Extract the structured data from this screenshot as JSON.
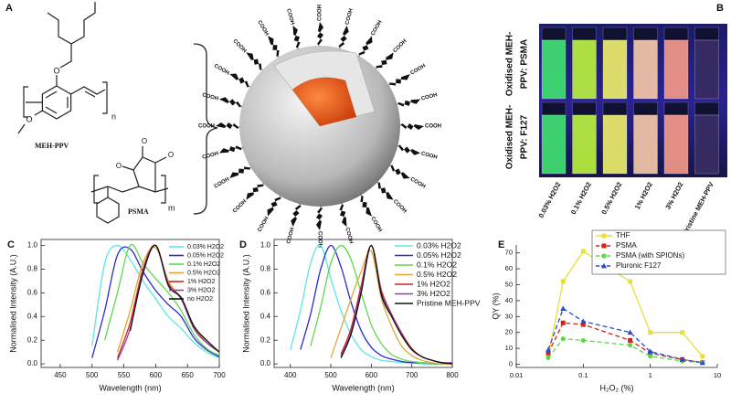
{
  "panel_a": {
    "label": "A",
    "polymer_1": "MEH-PPV",
    "polymer_2": "PSMA",
    "subscripts": [
      "n",
      "m"
    ],
    "oxygen_labels": [
      "O",
      "O",
      "O",
      "O",
      "O"
    ],
    "ligand_labels": [
      "COOH",
      "COOH",
      "COOH",
      "COOH",
      "COOH",
      "COOH",
      "COOH",
      "COOH",
      "COOH",
      "COOH",
      "COOH",
      "COOH",
      "COOH",
      "COOH",
      "COOH",
      "COOH",
      "COOH",
      "COOH",
      "COOH",
      "COOH",
      "COOH",
      "COOH",
      "COOH",
      "COOH"
    ]
  },
  "panel_b": {
    "label": "B",
    "row_labels": [
      [
        "Oxidised MEH-",
        "PPV: PSMA"
      ],
      [
        "Oxidised MEH-",
        "PPV: F127"
      ]
    ],
    "column_labels": [
      "0.03% H2O2",
      "0.1% H2O2",
      "0.5% H2O2",
      "1% H2O2",
      "3% H2O2",
      "Pristine MEH-PPV"
    ],
    "cuvette_colors": [
      "#3fe070",
      "#b8f03c",
      "#ecec6a",
      "#f4c8a8",
      "#f29888",
      "#3a2c62"
    ]
  },
  "chart_data": [
    {
      "type": "line",
      "panel_label": "C",
      "xlabel": "Wavelength (nm)",
      "ylabel": "Normalised Intensity (A.U.)",
      "smooth": true,
      "box": true,
      "legend": "upper right",
      "x": [
        500,
        520,
        540,
        560,
        580,
        600,
        620,
        640,
        660,
        680,
        700
      ],
      "series": [
        {
          "name": "0.03% H2O2",
          "color": "#5ee6e6",
          "values": [
            0.15,
            0.85,
            1.0,
            0.88,
            0.7,
            0.55,
            0.4,
            0.3,
            0.18,
            0.1,
            0.05
          ]
        },
        {
          "name": "0.05% H2O2",
          "color": "#2a2ad0",
          "values": [
            0.05,
            0.45,
            0.92,
            0.97,
            0.78,
            0.62,
            0.5,
            0.4,
            0.22,
            0.12,
            0.06
          ]
        },
        {
          "name": "0.1% H2O2",
          "color": "#5ed84a",
          "values": [
            null,
            0.2,
            0.6,
            1.0,
            0.85,
            0.72,
            0.6,
            0.45,
            0.25,
            0.13,
            0.07
          ]
        },
        {
          "name": "0.5% H2O2",
          "color": "#e0a428",
          "values": [
            null,
            null,
            0.1,
            0.45,
            0.85,
            0.98,
            0.7,
            0.55,
            0.32,
            0.18,
            0.1
          ]
        },
        {
          "name": "1% H2O2",
          "color": "#d42020",
          "values": [
            null,
            null,
            0.05,
            0.35,
            0.8,
            1.0,
            0.68,
            0.55,
            0.3,
            0.18,
            0.1
          ]
        },
        {
          "name": "3% H2O2",
          "color": "#8a44a8",
          "values": [
            null,
            null,
            0.03,
            0.3,
            0.78,
            1.0,
            0.67,
            0.55,
            0.3,
            0.18,
            0.1
          ]
        },
        {
          "name": "no H2O2",
          "color": "#111111",
          "values": [
            null,
            null,
            null,
            0.28,
            0.76,
            1.0,
            0.66,
            0.56,
            0.32,
            0.2,
            0.1
          ]
        }
      ],
      "xlim": [
        420,
        700
      ],
      "xticks": [
        450,
        500,
        550,
        600,
        650,
        700
      ],
      "ylim": [
        -0.03,
        1.05
      ],
      "yticks": [
        {
          "value": 0,
          "label": "0.0"
        },
        0.2,
        0.4,
        0.6,
        0.8,
        {
          "value": 1,
          "label": "1.0"
        }
      ]
    },
    {
      "type": "line",
      "panel_label": "D",
      "xlabel": "Wavelength (nm)",
      "ylabel": "Normalised Intensity (A.U.)",
      "smooth": true,
      "box": true,
      "legend": "upper right",
      "x": [
        400,
        425,
        450,
        475,
        500,
        525,
        550,
        575,
        600,
        625,
        650,
        675,
        700,
        725,
        750,
        775,
        800
      ],
      "series": [
        {
          "name": "0.03% H2O2",
          "color": "#5ee6e6",
          "values": [
            0.12,
            0.45,
            0.85,
            1.0,
            0.72,
            0.45,
            0.25,
            0.12,
            0.06,
            0.03,
            0.02,
            0.01,
            0.01,
            0,
            0,
            0,
            0
          ]
        },
        {
          "name": "0.05% H2O2",
          "color": "#2a2ad0",
          "values": [
            null,
            0.12,
            0.42,
            0.8,
            1.0,
            0.82,
            0.52,
            0.28,
            0.14,
            0.07,
            0.04,
            0.02,
            0.01,
            0.01,
            0,
            0,
            0
          ]
        },
        {
          "name": "0.1% H2O2",
          "color": "#5ed84a",
          "values": [
            null,
            null,
            0.15,
            0.48,
            0.85,
            1.0,
            0.88,
            0.6,
            0.33,
            0.17,
            0.08,
            0.04,
            0.02,
            0.01,
            0,
            0,
            0
          ]
        },
        {
          "name": "0.5% H2O2",
          "color": "#d8aa3c",
          "values": [
            null,
            null,
            null,
            null,
            0.05,
            0.3,
            0.55,
            0.78,
            0.95,
            0.55,
            0.32,
            0.15,
            0.07,
            0.03,
            0.01,
            0,
            0
          ]
        },
        {
          "name": "1% H2O2",
          "color": "#d42020",
          "values": [
            null,
            null,
            null,
            null,
            null,
            0.08,
            0.3,
            0.66,
            1.0,
            0.62,
            0.42,
            0.26,
            0.13,
            0.06,
            0.03,
            0.01,
            0.01
          ]
        },
        {
          "name": "3% H2O2",
          "color": "#8a44a8",
          "values": [
            null,
            null,
            null,
            null,
            null,
            0.06,
            0.27,
            0.63,
            1.0,
            0.6,
            0.41,
            0.25,
            0.12,
            0.06,
            0.03,
            0.01,
            0.01
          ]
        },
        {
          "name": "Pristine MEH-PPV",
          "color": "#111111",
          "values": [
            null,
            null,
            null,
            null,
            null,
            0.05,
            0.25,
            0.6,
            1.0,
            0.58,
            0.4,
            0.24,
            0.12,
            0.06,
            0.03,
            0.01,
            0
          ]
        }
      ],
      "xlim": [
        360,
        800
      ],
      "xticks": [
        400,
        500,
        600,
        700,
        800
      ],
      "ylim": [
        -0.03,
        1.05
      ],
      "yticks": [
        {
          "value": 0,
          "label": "0.0"
        },
        0.2,
        0.4,
        0.6,
        0.8,
        {
          "value": 1,
          "label": "1.0"
        }
      ]
    },
    {
      "type": "line",
      "panel_label": "E",
      "xlabel": "H₂O₂ (%)",
      "ylabel": "QY (%)",
      "smooth": false,
      "box": false,
      "xscale": "log",
      "legend": "upper right",
      "x": [
        0.03,
        0.05,
        0.1,
        0.5,
        1,
        3,
        6
      ],
      "series": [
        {
          "name": "THF",
          "color": "#e6e03a",
          "line_style": "solid",
          "marker": "square",
          "values": [
            5,
            52,
            71,
            52,
            20,
            20,
            5
          ]
        },
        {
          "name": "PSMA",
          "color": "#d42020",
          "line_style": "dashed",
          "marker": "square",
          "values": [
            7,
            26,
            25,
            15,
            7,
            3,
            1
          ]
        },
        {
          "name": "PSMA (with SPIONs)",
          "color": "#5ed84a",
          "line_style": "dashed",
          "marker": "circle",
          "values": [
            4,
            16,
            15,
            12,
            5,
            2,
            1
          ]
        },
        {
          "name": "Pluronic F127",
          "color": "#2a4ad0",
          "line_style": "dashed",
          "marker": "triangle",
          "values": [
            9,
            35,
            27,
            20,
            8,
            3,
            1
          ]
        }
      ],
      "xlim": [
        0.01,
        10
      ],
      "xticks": [
        0.01,
        0.1,
        1,
        10
      ],
      "ylim": [
        -2,
        75
      ],
      "yticks": [
        0,
        10,
        20,
        30,
        40,
        50,
        60,
        70
      ]
    }
  ]
}
